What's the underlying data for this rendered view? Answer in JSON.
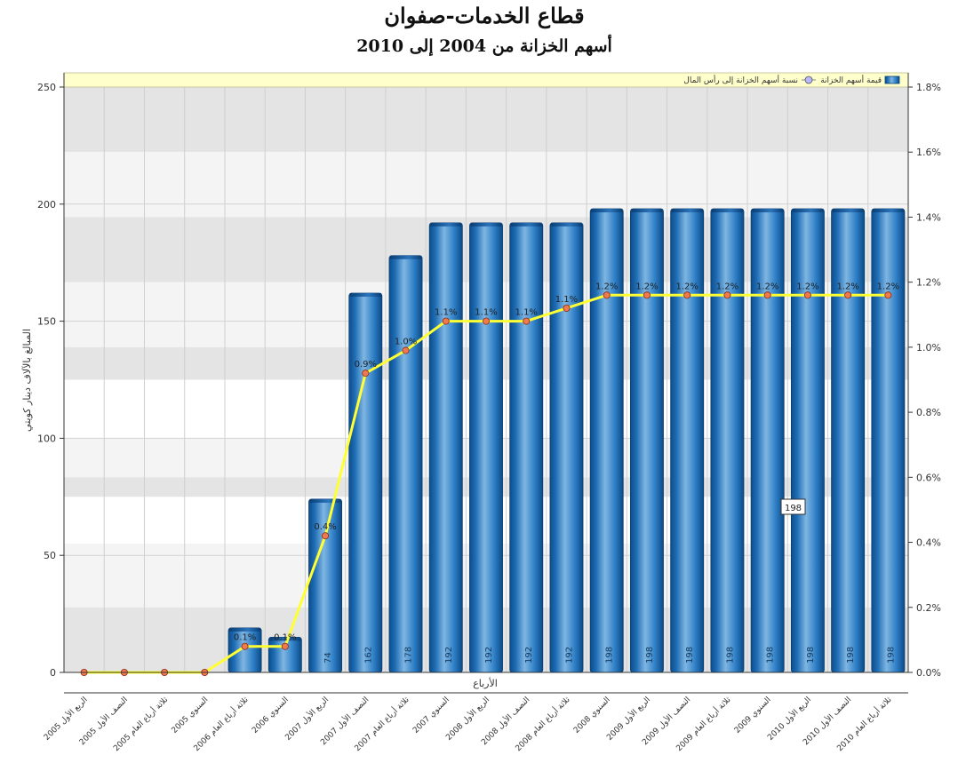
{
  "chart_data": {
    "type": "bar",
    "title": "قطاع الخدمات-صفوان",
    "subtitle": "أسهم الخزانة من 2004 إلى 2010",
    "xlabel": "الأرباع",
    "ylabel": "المبالغ بالآلاف دينار كويتي",
    "ylim": [
      0,
      250
    ],
    "y2lim": [
      0,
      1.8
    ],
    "y2_unit": "%",
    "grid": true,
    "legend_position": "top-right",
    "categories": [
      "الربع الأول 2005",
      "النصف الأول 2005",
      "ثلاثة أرباع العام 2005",
      "السنوي 2005",
      "ثلاثة أرباع العام 2006",
      "السنوي 2006",
      "الربع الأول 2007",
      "النصف الأول 2007",
      "ثلاثة أرباع العام 2007",
      "السنوي 2007",
      "الربع الأول 2008",
      "النصف الأول 2008",
      "ثلاثة أرباع العام 2008",
      "السنوي 2008",
      "الربع الأول 2009",
      "النصف الأول 2009",
      "ثلاثة أرباع العام 2009",
      "السنوي 2009",
      "الربع الأول 2010",
      "النصف الأول 2010",
      "ثلاثة أرباع العام 2010"
    ],
    "yticks": [
      "0",
      "50",
      "100",
      "150",
      "200",
      "250"
    ],
    "y2ticks": [
      "0.0%",
      "0.2%",
      "0.4%",
      "0.6%",
      "0.8%",
      "1.0%",
      "1.2%",
      "1.4%",
      "1.6%",
      "1.8%"
    ],
    "series": [
      {
        "name": "قيمة أسهم الخزانة",
        "kind": "bar",
        "color": "#2f7fc6",
        "values": [
          0,
          0,
          0,
          0,
          19,
          15,
          74,
          162,
          178,
          192,
          192,
          192,
          192,
          198,
          198,
          198,
          198,
          198,
          198,
          198,
          198
        ],
        "labels": [
          "",
          "",
          "",
          "",
          "",
          "",
          "74",
          "162",
          "178",
          "192",
          "192",
          "192",
          "192",
          "198",
          "198",
          "198",
          "198",
          "198",
          "198",
          "198",
          "198"
        ]
      },
      {
        "name": "نسبة أسهم الخزانة إلى رأس المال",
        "kind": "line",
        "axis": "right",
        "color": "#ffff33",
        "values": [
          0,
          0,
          0,
          0,
          0.08,
          0.08,
          0.42,
          0.92,
          0.99,
          1.08,
          1.08,
          1.08,
          1.12,
          1.16,
          1.16,
          1.16,
          1.16,
          1.16,
          1.16,
          1.16,
          1.16
        ],
        "labels": [
          "",
          "",
          "",
          "",
          "0.1%",
          "0.1%",
          "0.4%",
          "0.9%",
          "1.0%",
          "1.1%",
          "1.1%",
          "1.1%",
          "1.1%",
          "1.2%",
          "1.2%",
          "1.2%",
          "1.2%",
          "1.2%",
          "1.2%",
          "1.2%",
          "1.2%"
        ]
      }
    ],
    "tooltip": "198"
  }
}
